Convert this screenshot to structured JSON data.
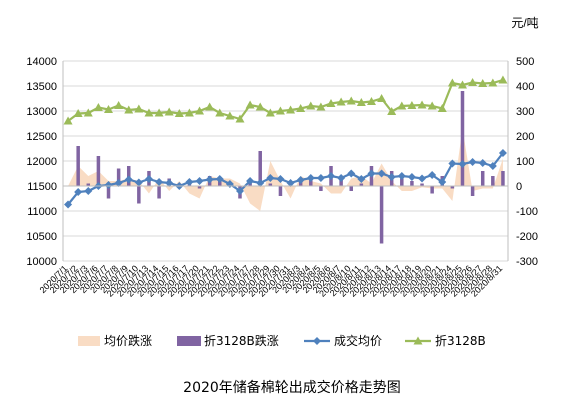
{
  "chart_data": {
    "type": "bar+line",
    "title": "2020年储备棉轮出成交价格走势图",
    "y2_unit": "元/吨",
    "ylim": [
      10000,
      14000
    ],
    "y_ticks": [
      10000,
      10500,
      11000,
      11500,
      12000,
      12500,
      13000,
      13500,
      14000
    ],
    "y2lim": [
      -300,
      500
    ],
    "y2_ticks": [
      -300,
      -200,
      -100,
      0,
      100,
      200,
      300,
      400,
      500
    ],
    "x_ticks": [
      "2020/7/1",
      "2020/7/2",
      "2020/7/3",
      "2020/7/6",
      "2020/7/7",
      "2020/7/8",
      "2020/7/9",
      "2020/7/10",
      "2020/7/13",
      "2020/7/14",
      "2020/7/15",
      "2020/7/16",
      "2020/7/17",
      "2020/7/20",
      "2020/7/21",
      "2020/7/22",
      "2020/7/23",
      "2020/7/24",
      "2020/7/27",
      "2020/7/28",
      "2020/7/29",
      "2020/7/30",
      "2020/7/31",
      "2020/8/3",
      "2020/8/4",
      "2020/8/5",
      "2020/8/6",
      "2020/8/7",
      "2020/8/10",
      "2020/8/11",
      "2020/8/12",
      "2020/8/13",
      "2020/8/14",
      "2020/8/17",
      "2020/8/18",
      "2020/8/19",
      "2020/8/20",
      "2020/8/21",
      "2020/8/24",
      "2020/8/25",
      "2020/8/26",
      "2020/8/27",
      "2020/8/28",
      "2020/8/31"
    ],
    "legend": [
      "均价跌涨",
      "折3128B跌涨",
      "成交均价",
      "折3128B"
    ],
    "series": [
      {
        "name": "均价跌涨",
        "type": "area",
        "axis": "right",
        "color": "#f9dcc4",
        "values": [
          0,
          80,
          40,
          60,
          20,
          20,
          30,
          20,
          -30,
          30,
          -20,
          20,
          -30,
          -50,
          40,
          30,
          30,
          10,
          -70,
          -100,
          100,
          20,
          -50,
          40,
          20,
          10,
          -30,
          -30,
          30,
          40,
          10,
          90,
          20,
          -20,
          -20,
          -5,
          -10,
          -10,
          -60,
          230,
          -20,
          -10,
          -10,
          110
        ]
      },
      {
        "name": "折3128B跌涨",
        "type": "bar",
        "axis": "right",
        "color": "#8064a2",
        "values": [
          0,
          160,
          10,
          120,
          -50,
          70,
          80,
          -70,
          60,
          -50,
          30,
          10,
          20,
          -10,
          40,
          20,
          10,
          -50,
          20,
          140,
          10,
          -40,
          20,
          20,
          40,
          -20,
          80,
          30,
          -20,
          10,
          80,
          -230,
          60,
          30,
          20,
          10,
          -30,
          40,
          -10,
          380,
          -40,
          60,
          40,
          60
        ]
      },
      {
        "name": "成交均价",
        "type": "line",
        "axis": "left",
        "color": "#4f81bd",
        "marker": "diamond",
        "values": [
          11130,
          11380,
          11400,
          11500,
          11520,
          11560,
          11630,
          11570,
          11640,
          11580,
          11560,
          11500,
          11580,
          11600,
          11630,
          11640,
          11540,
          11400,
          11600,
          11560,
          11660,
          11640,
          11560,
          11620,
          11660,
          11660,
          11700,
          11660,
          11750,
          11640,
          11750,
          11750,
          11680,
          11700,
          11680,
          11650,
          11720,
          11580,
          11950,
          11940,
          11980,
          11960,
          11900,
          12160
        ]
      },
      {
        "name": "折3128B",
        "type": "line",
        "axis": "left",
        "color": "#9bbb59",
        "marker": "triangle",
        "values": [
          12800,
          12950,
          12960,
          13070,
          13030,
          13110,
          13020,
          13040,
          12960,
          12960,
          12980,
          12950,
          12960,
          13000,
          13080,
          12960,
          12900,
          12840,
          13120,
          13080,
          12960,
          13000,
          13020,
          13050,
          13100,
          13080,
          13150,
          13180,
          13200,
          13170,
          13190,
          13250,
          12990,
          13100,
          13110,
          13120,
          13100,
          13050,
          13560,
          13520,
          13570,
          13550,
          13560,
          13620
        ]
      }
    ]
  }
}
